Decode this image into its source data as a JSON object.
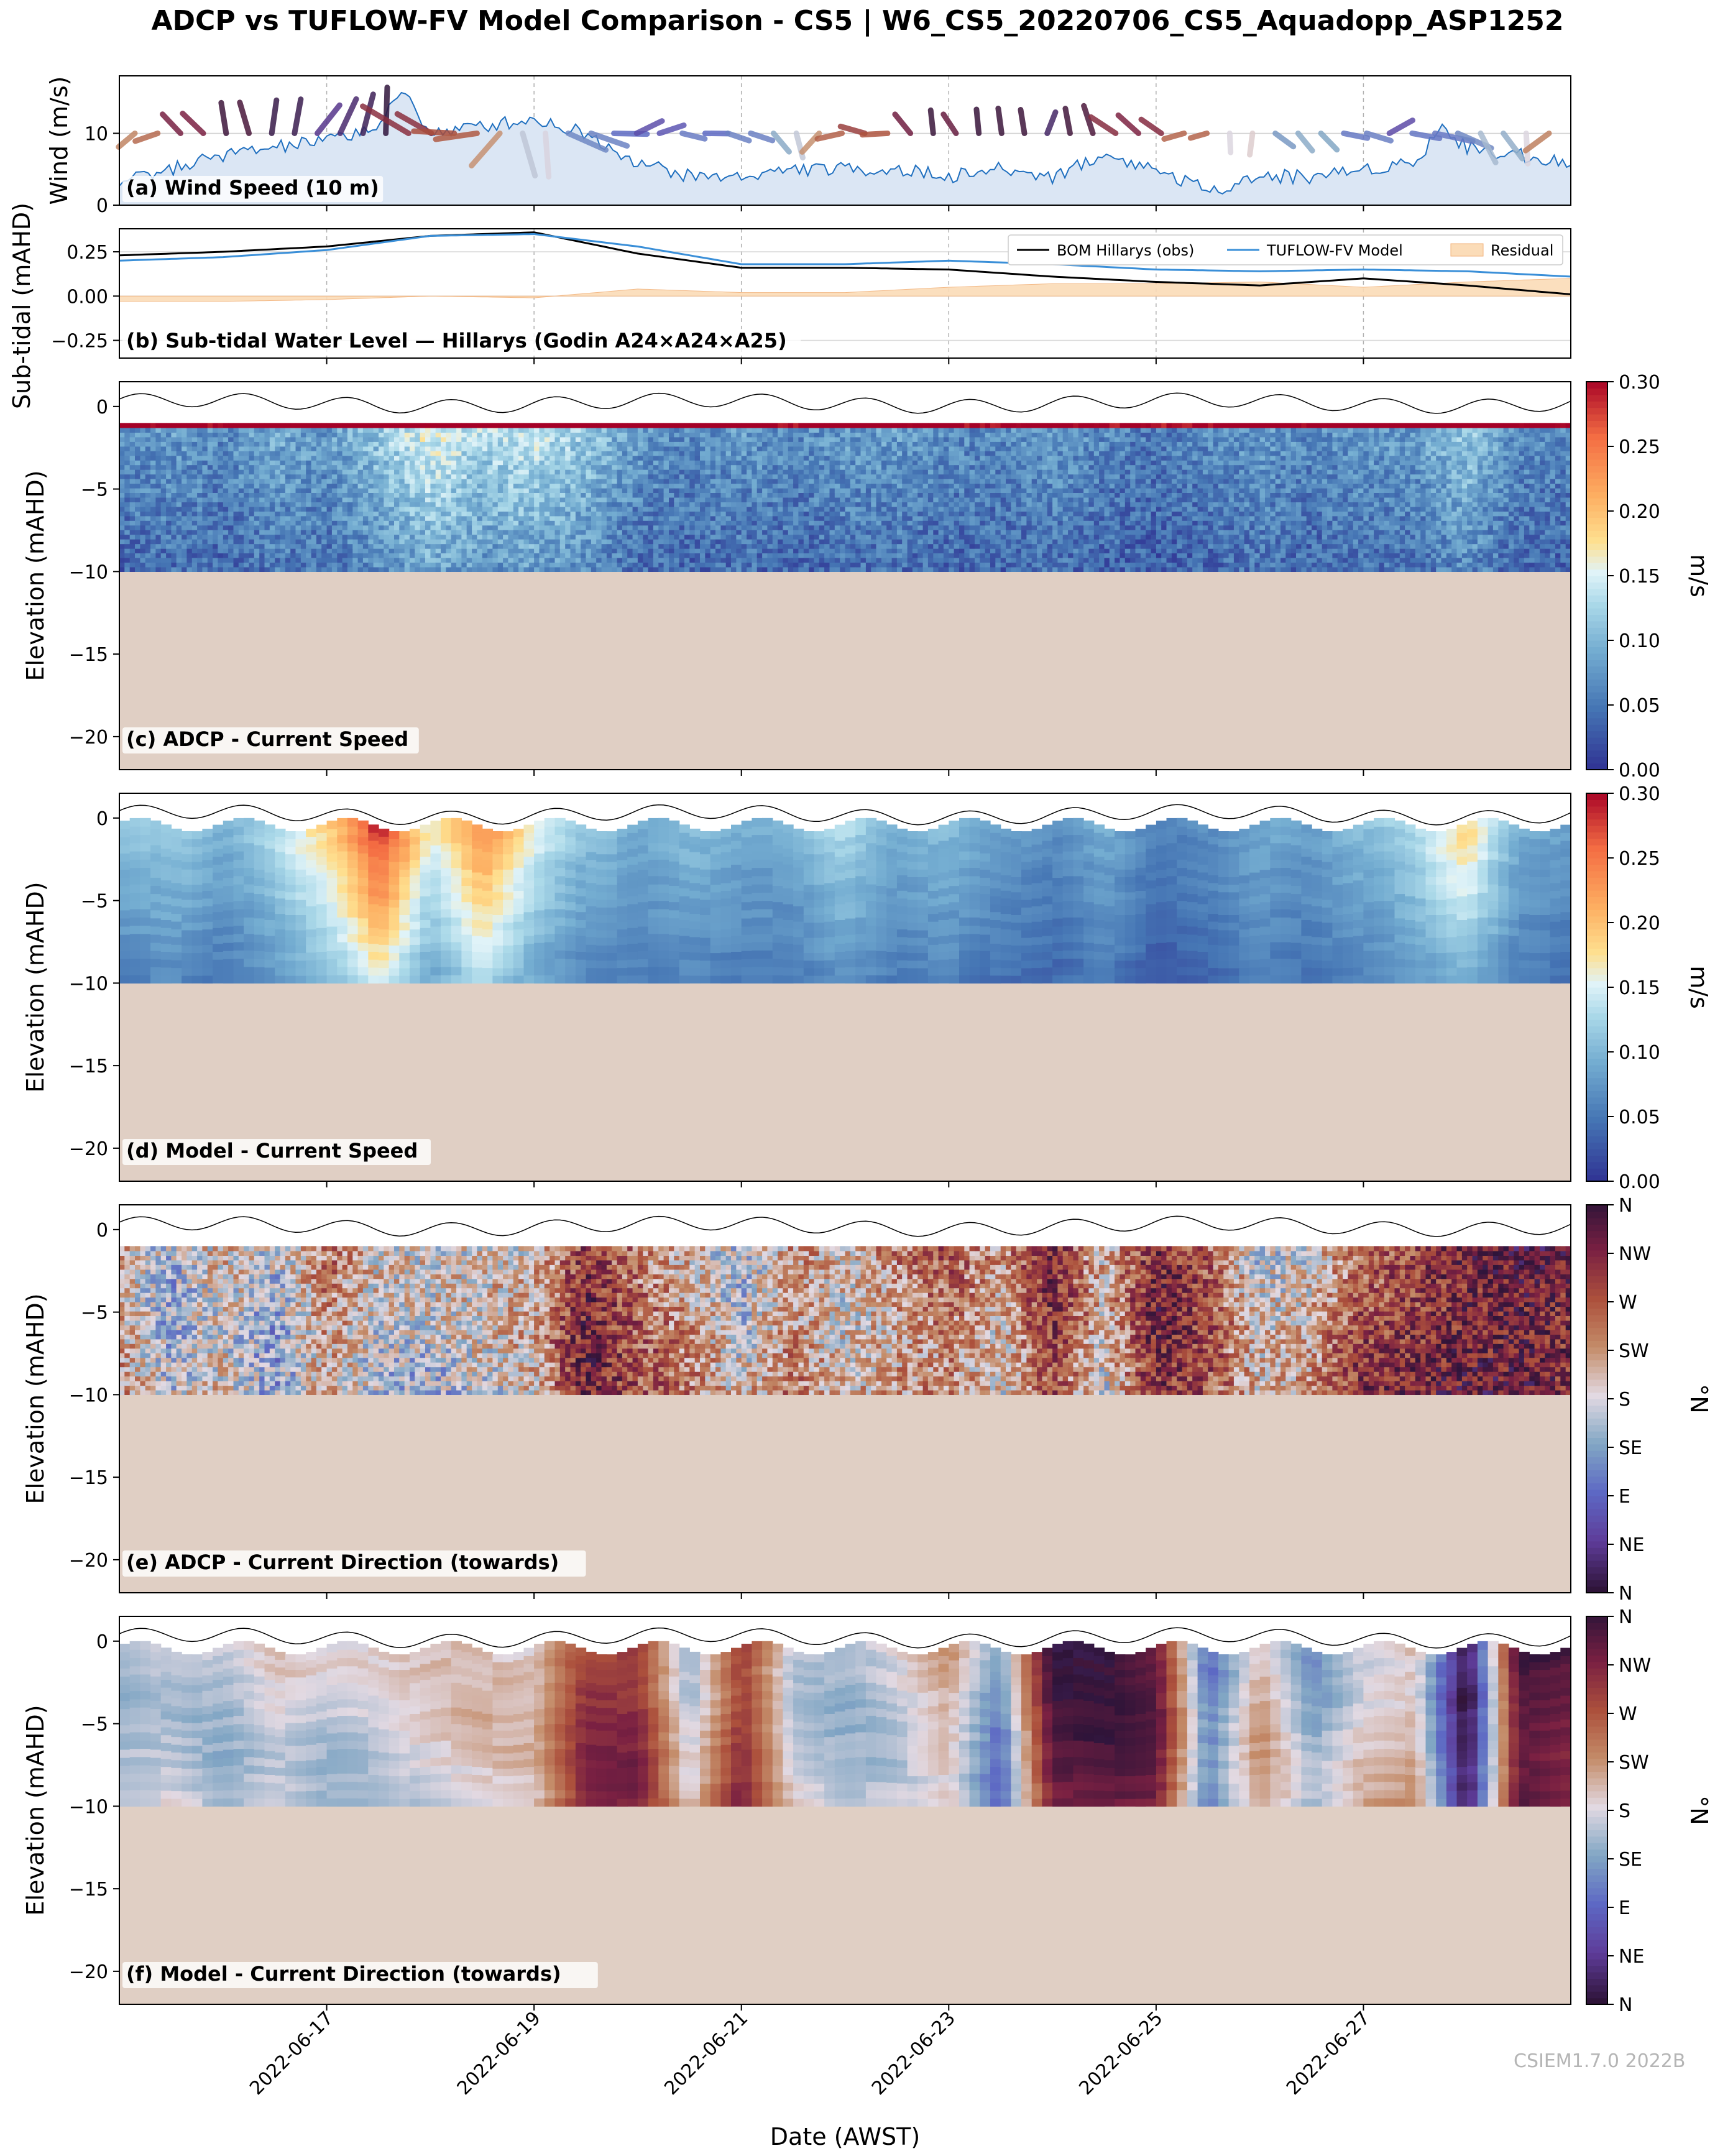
{
  "figure": {
    "title": "ADCP vs TUFLOW-FV Model Comparison - CS5 | W6_CS5_20220706_CS5_Aquadopp_ASP1252",
    "watermark": "CSIEM1.7.0 2022B",
    "xlabel": "Date (AWST)",
    "date_ticks": [
      "2022-06-17",
      "2022-06-19",
      "2022-06-21",
      "2022-06-23",
      "2022-06-25",
      "2022-06-27"
    ]
  },
  "colors": {
    "wind_fill": "#dbe6f4",
    "wind_line": "#1f6fbf",
    "obs_line": "#000000",
    "model_line": "#3a8fd8",
    "residual_fill": "#fbdcb8",
    "seabed": "#e0cfc4"
  },
  "chart_data": [
    {
      "panel_label": "(a) Wind Speed (10 m)",
      "type": "area",
      "ylabel": "Wind (m/s)",
      "ylim": [
        0,
        18
      ],
      "yticks": [
        "0",
        "10"
      ],
      "x_range": [
        "2022-06-15",
        "2022-06-29"
      ],
      "x": [
        "06-15 00:00",
        "06-15 12:00",
        "06-16 00:00",
        "06-16 12:00",
        "06-17 00:00",
        "06-17 12:00",
        "06-17 18:00",
        "06-18 00:00",
        "06-18 12:00",
        "06-19 00:00",
        "06-19 12:00",
        "06-20 00:00",
        "06-20 12:00",
        "06-21 00:00",
        "06-21 12:00",
        "06-22 00:00",
        "06-22 12:00",
        "06-23 00:00",
        "06-23 12:00",
        "06-24 00:00",
        "06-24 12:00",
        "06-25 00:00",
        "06-25 12:00",
        "06-26 00:00",
        "06-26 12:00",
        "06-27 00:00",
        "06-27 12:00",
        "06-27 18:00",
        "06-28 00:00",
        "06-28 12:00",
        "06-29 00:00"
      ],
      "values": [
        3,
        5,
        7,
        8,
        9,
        11,
        16,
        10,
        11,
        12,
        10,
        6,
        4,
        4,
        5,
        5,
        5,
        4,
        5,
        4,
        7,
        5,
        2,
        4,
        4,
        5,
        6,
        11,
        8,
        7,
        6
      ],
      "wind_barbs": "vectors along the top of the panel, coloured by direction"
    },
    {
      "panel_label": "(b) Sub-tidal Water Level — Hillarys (Godin A24×A24×A25)",
      "type": "line",
      "ylabel": "Sub-tidal (mAHD)",
      "ylim": [
        -0.35,
        0.38
      ],
      "yticks": [
        "−0.25",
        "0.00",
        "0.25"
      ],
      "legend_position": "top-right",
      "series": [
        {
          "name": "BOM Hillarys (obs)",
          "x": [
            "06-15",
            "06-16",
            "06-17",
            "06-18",
            "06-19",
            "06-20",
            "06-21",
            "06-22",
            "06-23",
            "06-24",
            "06-25",
            "06-26",
            "06-27",
            "06-28",
            "06-29"
          ],
          "values": [
            0.23,
            0.25,
            0.28,
            0.34,
            0.36,
            0.24,
            0.16,
            0.16,
            0.15,
            0.11,
            0.08,
            0.06,
            0.1,
            0.06,
            0.01
          ]
        },
        {
          "name": "TUFLOW-FV Model",
          "x": [
            "06-15",
            "06-16",
            "06-17",
            "06-18",
            "06-19",
            "06-20",
            "06-21",
            "06-22",
            "06-23",
            "06-24",
            "06-25",
            "06-26",
            "06-27",
            "06-28",
            "06-29"
          ],
          "values": [
            0.2,
            0.22,
            0.26,
            0.34,
            0.35,
            0.28,
            0.18,
            0.18,
            0.2,
            0.18,
            0.15,
            0.14,
            0.15,
            0.14,
            0.11
          ]
        },
        {
          "name": "Residual",
          "x": [
            "06-15",
            "06-16",
            "06-17",
            "06-18",
            "06-19",
            "06-20",
            "06-21",
            "06-22",
            "06-23",
            "06-24",
            "06-25",
            "06-26",
            "06-27",
            "06-28",
            "06-29"
          ],
          "values": [
            -0.03,
            -0.03,
            -0.02,
            0.0,
            -0.01,
            0.04,
            0.02,
            0.02,
            0.05,
            0.07,
            0.07,
            0.08,
            0.05,
            0.08,
            0.1
          ]
        }
      ]
    },
    {
      "panel_label": "(c) ADCP - Current Speed",
      "type": "heatmap",
      "ylabel": "Elevation (mAHD)",
      "ylim": [
        -22,
        1.5
      ],
      "yticks": [
        "−20",
        "−15",
        "−10",
        "−5",
        "0"
      ],
      "colorbar_label": "m/s",
      "colorbar_ticks": [
        "0.00",
        "0.05",
        "0.10",
        "0.15",
        "0.20",
        "0.25",
        "0.30"
      ],
      "clim": [
        0,
        0.3
      ],
      "bed_elevation": -10,
      "x_days": [
        15.0,
        15.5,
        16.0,
        16.5,
        17.0,
        17.5,
        18.0,
        18.5,
        19.0,
        19.5,
        20.0,
        20.5,
        21.0,
        21.5,
        22.0,
        22.5,
        23.0,
        23.5,
        24.0,
        24.5,
        25.0,
        25.5,
        26.0,
        26.5,
        27.0,
        27.5,
        28.0,
        28.5,
        29.0
      ],
      "column_mean_speed": [
        0.05,
        0.06,
        0.05,
        0.07,
        0.06,
        0.09,
        0.12,
        0.1,
        0.11,
        0.09,
        0.06,
        0.05,
        0.06,
        0.05,
        0.06,
        0.06,
        0.05,
        0.05,
        0.06,
        0.05,
        0.04,
        0.05,
        0.06,
        0.05,
        0.06,
        0.06,
        0.09,
        0.05,
        0.05
      ]
    },
    {
      "panel_label": "(d) Model - Current Speed",
      "type": "heatmap",
      "ylabel": "Elevation (mAHD)",
      "ylim": [
        -22,
        1.5
      ],
      "yticks": [
        "−20",
        "−15",
        "−10",
        "−5",
        "0"
      ],
      "colorbar_label": "m/s",
      "colorbar_ticks": [
        "0.00",
        "0.05",
        "0.10",
        "0.15",
        "0.20",
        "0.25",
        "0.30"
      ],
      "clim": [
        0,
        0.3
      ],
      "bed_elevation": -10,
      "x_days": [
        15.0,
        15.5,
        16.0,
        16.5,
        17.0,
        17.5,
        18.0,
        18.5,
        19.0,
        19.5,
        20.0,
        20.5,
        21.0,
        21.5,
        22.0,
        22.5,
        23.0,
        23.5,
        24.0,
        24.5,
        25.0,
        25.5,
        26.0,
        26.5,
        27.0,
        27.5,
        28.0,
        28.5,
        29.0
      ],
      "column_mean_speed": [
        0.08,
        0.09,
        0.07,
        0.1,
        0.14,
        0.22,
        0.12,
        0.18,
        0.12,
        0.08,
        0.07,
        0.08,
        0.07,
        0.07,
        0.1,
        0.07,
        0.08,
        0.06,
        0.05,
        0.07,
        0.04,
        0.05,
        0.07,
        0.06,
        0.08,
        0.1,
        0.14,
        0.07,
        0.06
      ]
    },
    {
      "panel_label": "(e) ADCP - Current Direction (towards)",
      "type": "heatmap",
      "ylabel": "Elevation (mAHD)",
      "ylim": [
        -22,
        1.5
      ],
      "yticks": [
        "−20",
        "−15",
        "−10",
        "−5",
        "0"
      ],
      "colorbar_label": "°N",
      "colorbar_ticks": [
        "N",
        "NE",
        "E",
        "SE",
        "S",
        "SW",
        "W",
        "NW",
        "N"
      ],
      "clim": [
        0,
        360
      ],
      "bed_elevation": -10,
      "x_days": [
        15.0,
        15.5,
        16.0,
        16.5,
        17.0,
        17.5,
        18.0,
        18.5,
        19.0,
        19.5,
        20.0,
        20.5,
        21.0,
        21.5,
        22.0,
        22.5,
        23.0,
        23.5,
        24.0,
        24.5,
        25.0,
        25.5,
        26.0,
        26.5,
        27.0,
        27.5,
        28.0,
        28.5,
        29.0
      ],
      "column_mean_direction": [
        220,
        160,
        200,
        150,
        230,
        170,
        160,
        170,
        190,
        300,
        250,
        220,
        170,
        240,
        200,
        230,
        250,
        200,
        290,
        180,
        300,
        260,
        170,
        200,
        280,
        300,
        330,
        340,
        320
      ]
    },
    {
      "panel_label": "(f) Model - Current Direction (towards)",
      "type": "heatmap",
      "ylabel": "Elevation (mAHD)",
      "ylim": [
        -22,
        1.5
      ],
      "yticks": [
        "−20",
        "−15",
        "−10",
        "−5",
        "0"
      ],
      "colorbar_label": "°N",
      "colorbar_ticks": [
        "N",
        "NE",
        "E",
        "SE",
        "S",
        "SW",
        "W",
        "NW",
        "N"
      ],
      "clim": [
        0,
        360
      ],
      "bed_elevation": -10,
      "x_days": [
        15.0,
        15.5,
        16.0,
        16.5,
        17.0,
        17.5,
        18.0,
        18.5,
        19.0,
        19.5,
        20.0,
        20.5,
        21.0,
        21.5,
        22.0,
        22.5,
        23.0,
        23.5,
        24.0,
        24.5,
        25.0,
        25.5,
        26.0,
        26.5,
        27.0,
        27.5,
        28.0,
        28.5,
        29.0
      ],
      "column_mean_direction": [
        160,
        175,
        160,
        185,
        165,
        165,
        180,
        185,
        185,
        290,
        300,
        160,
        300,
        175,
        160,
        175,
        210,
        100,
        340,
        340,
        320,
        90,
        210,
        130,
        190,
        210,
        10,
        350,
        330
      ]
    }
  ]
}
